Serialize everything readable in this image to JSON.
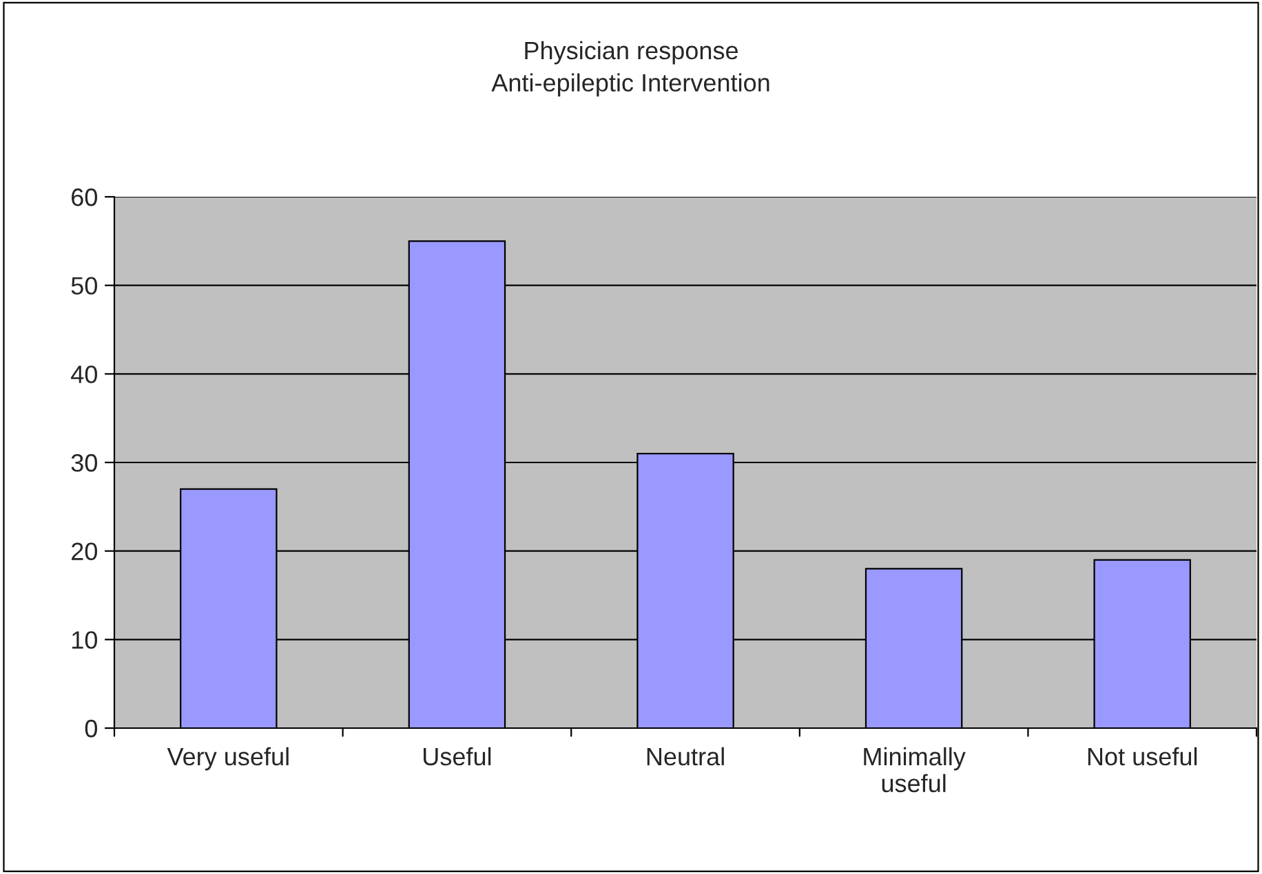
{
  "chart_data": {
    "type": "bar",
    "title": "Physician response\nAnti-epileptic Intervention",
    "categories": [
      "Very useful",
      "Useful",
      "Neutral",
      "Minimally\nuseful",
      "Not useful"
    ],
    "values": [
      27,
      55,
      31,
      18,
      19
    ],
    "color": "#9999ff",
    "ylim": [
      0,
      60
    ],
    "yticks": [
      0,
      10,
      20,
      30,
      40,
      50,
      60
    ],
    "grid": "y"
  }
}
